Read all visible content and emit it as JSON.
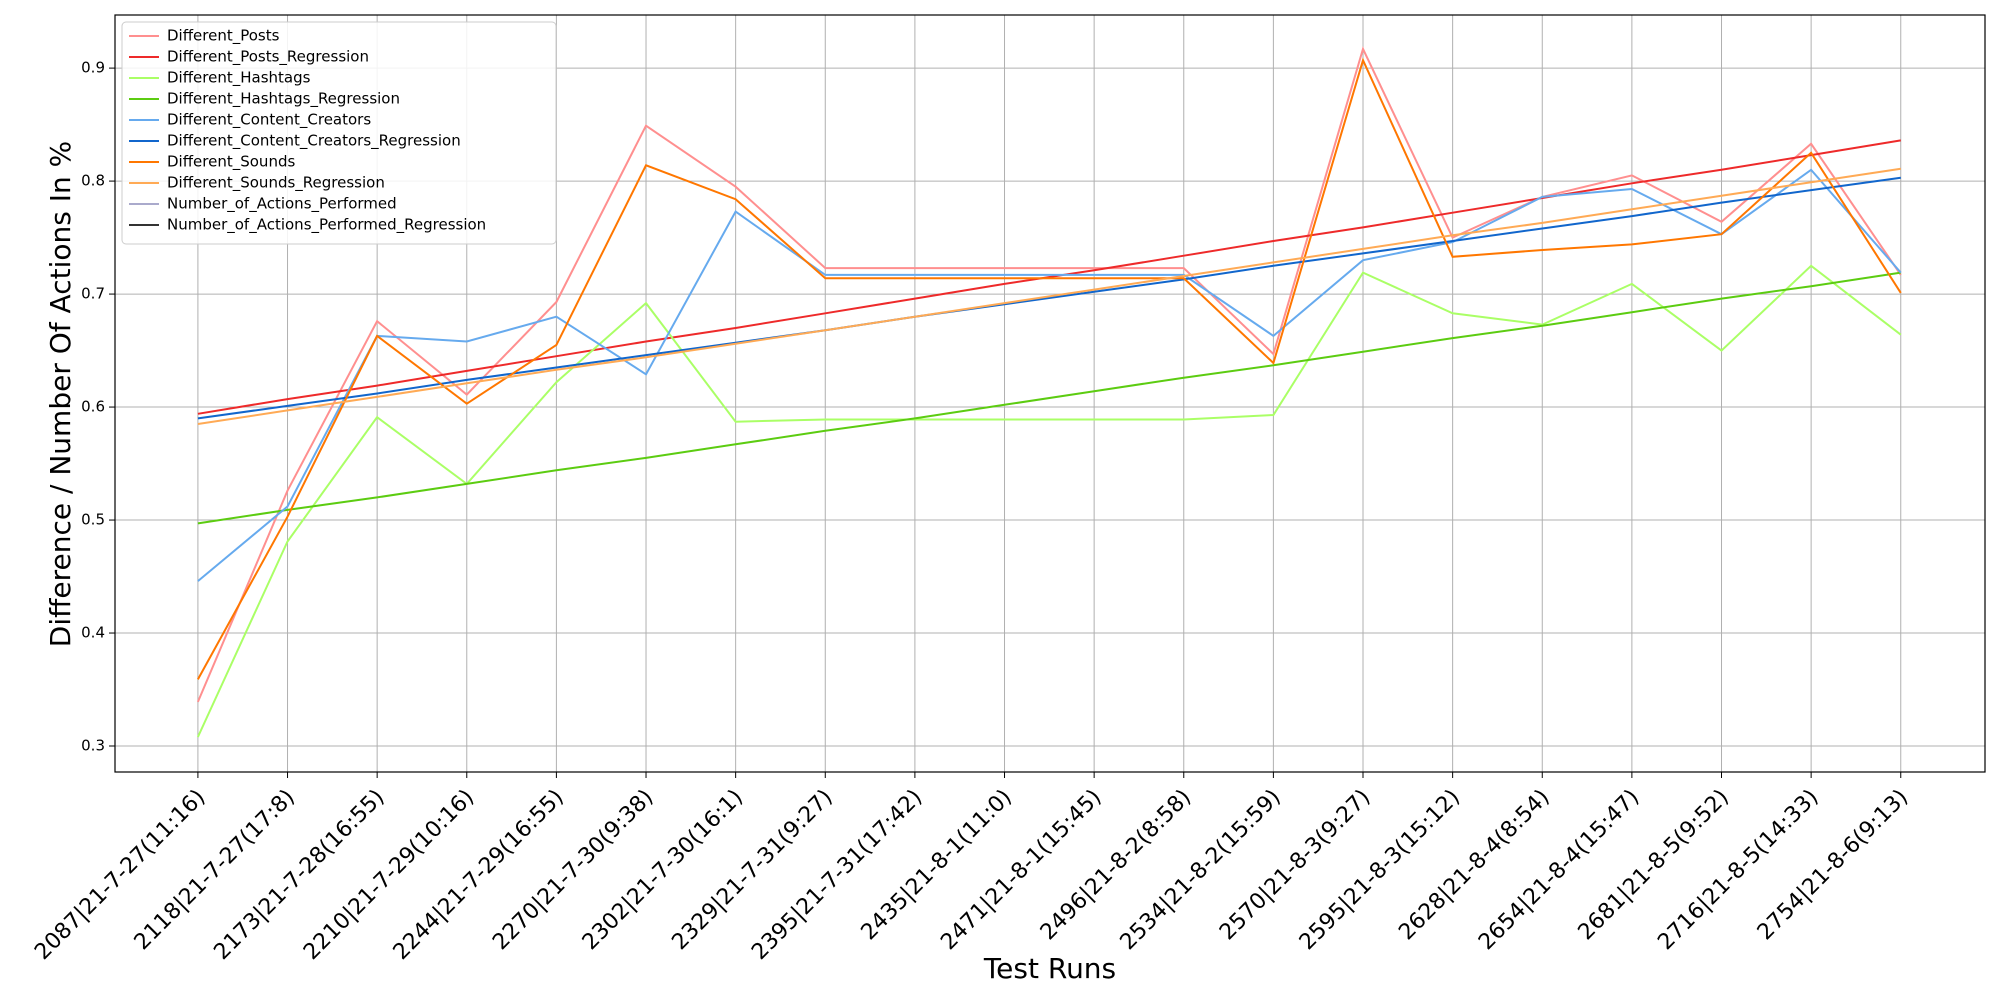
{
  "chart_data": {
    "type": "line",
    "y_label": "Difference / Number Of Actions In %",
    "x_label": "Test Runs",
    "categories": [
      "2087|21-7-27(11:16)",
      "2118|21-7-27(17:8)",
      "2173|21-7-28(16:55)",
      "2210|21-7-29(10:16)",
      "2244|21-7-29(16:55)",
      "2270|21-7-30(9:38)",
      "2302|21-7-30(16:1)",
      "2329|21-7-31(9:27)",
      "2395|21-7-31(17:42)",
      "2435|21-8-1(11:0)",
      "2471|21-8-1(15:45)",
      "2496|21-8-2(8:58)",
      "2534|21-8-2(15:59)",
      "2570|21-8-3(9:27)",
      "2595|21-8-3(15:12)",
      "2628|21-8-4(8:54)",
      "2654|21-8-4(15:47)",
      "2681|21-8-5(9:52)",
      "2716|21-8-5(14:33)",
      "2754|21-8-6(9:13)"
    ],
    "series": [
      {
        "name": "Different_Posts",
        "color": "#ff8f8f",
        "values": [
          0.339,
          0.526,
          0.676,
          0.611,
          0.693,
          0.849,
          0.795,
          0.723,
          0.723,
          0.723,
          0.723,
          0.723,
          0.647,
          0.917,
          0.75,
          0.786,
          0.805,
          0.764,
          0.833,
          0.717
        ]
      },
      {
        "name": "Different_Posts_Regression",
        "color": "#ee2a2a",
        "values": [
          0.594,
          0.607,
          0.619,
          0.632,
          0.645,
          0.658,
          0.67,
          0.683,
          0.696,
          0.709,
          0.721,
          0.734,
          0.747,
          0.759,
          0.772,
          0.785,
          0.798,
          0.81,
          0.823,
          0.836
        ]
      },
      {
        "name": "Different_Hashtags",
        "color": "#aaff66",
        "values": [
          0.308,
          0.481,
          0.591,
          0.532,
          0.622,
          0.692,
          0.587,
          0.589,
          0.589,
          0.589,
          0.589,
          0.589,
          0.593,
          0.719,
          0.683,
          0.673,
          0.709,
          0.65,
          0.725,
          0.664
        ]
      },
      {
        "name": "Different_Hashtags_Regression",
        "color": "#5ccc11",
        "values": [
          0.497,
          0.509,
          0.52,
          0.532,
          0.544,
          0.555,
          0.567,
          0.579,
          0.59,
          0.602,
          0.614,
          0.626,
          0.637,
          0.649,
          0.661,
          0.672,
          0.684,
          0.696,
          0.707,
          0.719
        ]
      },
      {
        "name": "Different_Content_Creators",
        "color": "#66aaee",
        "values": [
          0.446,
          0.512,
          0.663,
          0.658,
          0.68,
          0.629,
          0.773,
          0.717,
          0.717,
          0.717,
          0.717,
          0.717,
          0.663,
          0.73,
          0.746,
          0.786,
          0.793,
          0.753,
          0.81,
          0.719
        ]
      },
      {
        "name": "Different_Content_Creators_Regression",
        "color": "#1166cc",
        "values": [
          0.59,
          0.601,
          0.612,
          0.624,
          0.635,
          0.646,
          0.657,
          0.668,
          0.68,
          0.691,
          0.702,
          0.713,
          0.725,
          0.736,
          0.747,
          0.758,
          0.769,
          0.781,
          0.792,
          0.803
        ]
      },
      {
        "name": "Different_Sounds",
        "color": "#ff7700",
        "values": [
          0.359,
          0.503,
          0.663,
          0.603,
          0.655,
          0.814,
          0.784,
          0.714,
          0.714,
          0.714,
          0.714,
          0.714,
          0.639,
          0.907,
          0.733,
          0.739,
          0.744,
          0.753,
          0.825,
          0.701
        ]
      },
      {
        "name": "Different_Sounds_Regression",
        "color": "#ffaa55",
        "values": [
          0.585,
          0.597,
          0.609,
          0.621,
          0.633,
          0.644,
          0.656,
          0.668,
          0.68,
          0.692,
          0.704,
          0.716,
          0.728,
          0.74,
          0.752,
          0.763,
          0.775,
          0.787,
          0.799,
          0.811
        ]
      },
      {
        "name": "Number_of_Actions_Performed",
        "color": "#aaaacc",
        "values": [
          null,
          null,
          null,
          null,
          null,
          null,
          null,
          null,
          null,
          null,
          null,
          null,
          null,
          null,
          null,
          null,
          null,
          null,
          null,
          null
        ]
      },
      {
        "name": "Number_of_Actions_Performed_Regression",
        "color": "#333333",
        "values": [
          null,
          null,
          null,
          null,
          null,
          null,
          null,
          null,
          null,
          null,
          null,
          null,
          null,
          null,
          null,
          null,
          null,
          null,
          null,
          null
        ]
      }
    ],
    "ylim": [
      0.277,
      0.947
    ],
    "yticks": [
      0.3,
      0.4,
      0.5,
      0.6,
      0.7,
      0.8,
      0.9
    ],
    "grid": true,
    "legend": "upper left"
  }
}
